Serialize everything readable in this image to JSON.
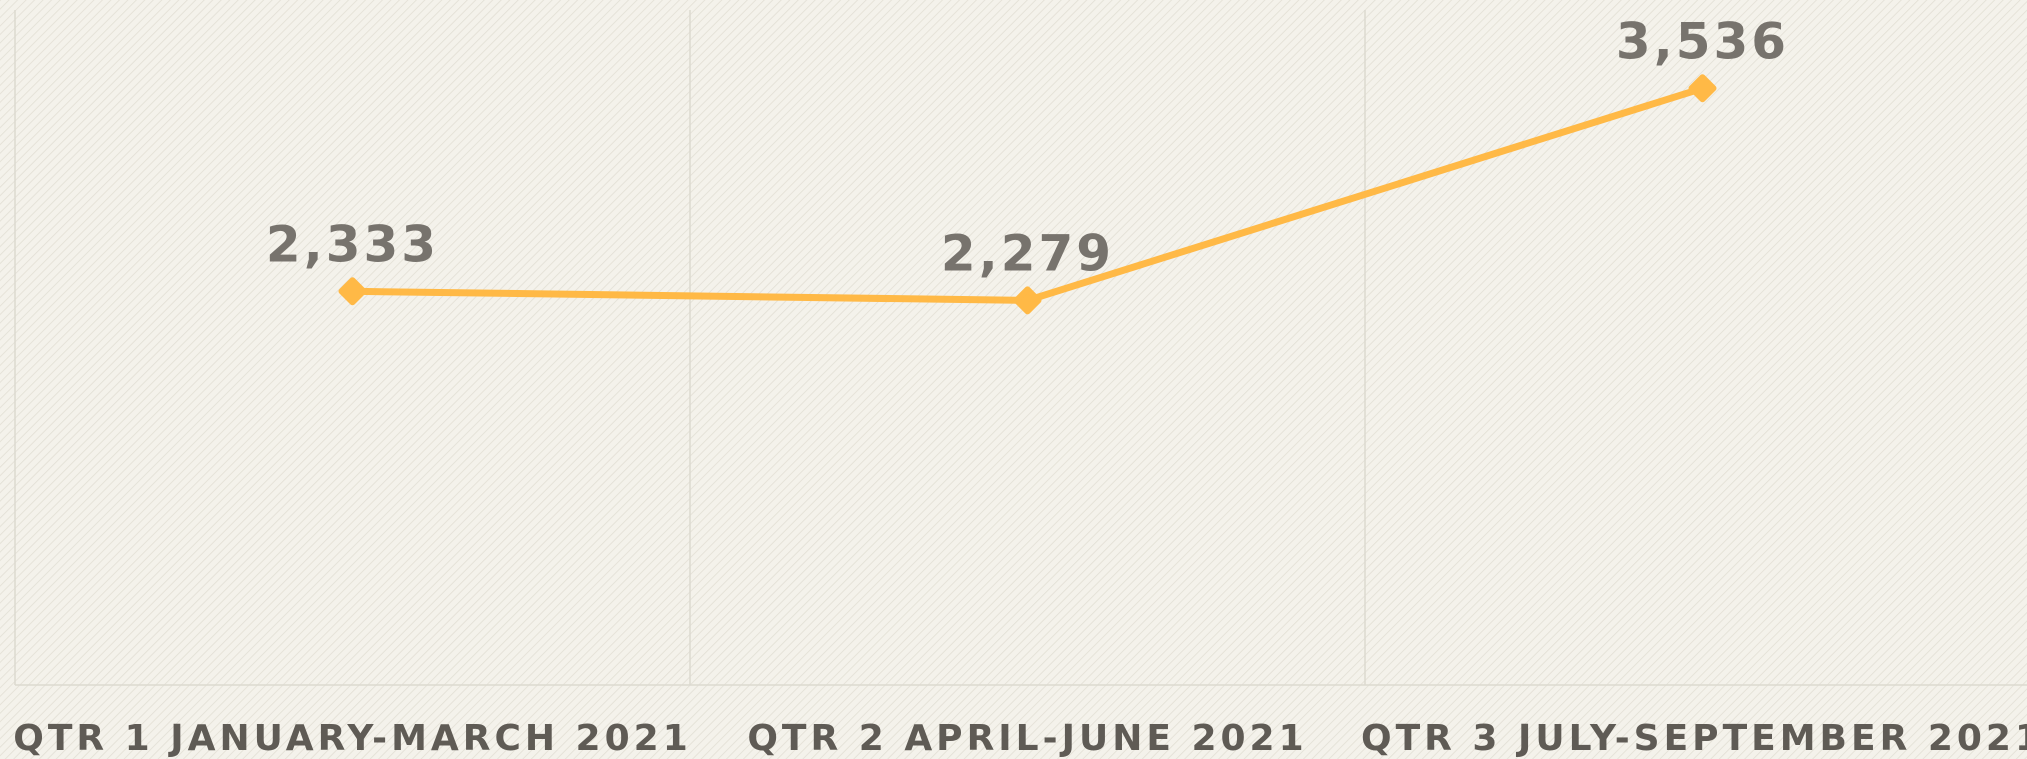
{
  "chart_data": {
    "type": "line",
    "categories": [
      "QTR 1 JANUARY-MARCH 2021",
      "QTR 2 APRIL-JUNE 2021",
      "QTR 3 JULY-SEPTEMBER 2021"
    ],
    "series": [
      {
        "color": "#ffb946",
        "values": [
          2333,
          2279,
          3536
        ],
        "value_labels": [
          "2,333",
          "2,279",
          "3,536"
        ]
      }
    ],
    "ylim": [
      0,
      4000
    ]
  }
}
